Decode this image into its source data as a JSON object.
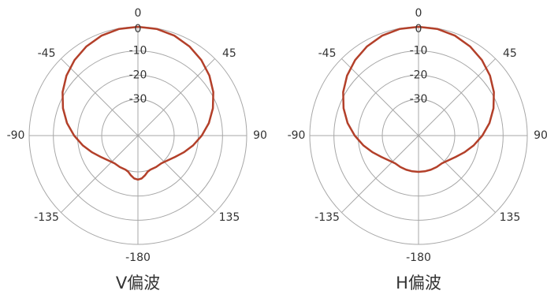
{
  "chart_data": [
    {
      "type": "polar-line",
      "title": "V偏波",
      "angle_unit": "deg",
      "angle_ticks": [
        0,
        45,
        90,
        135,
        -180,
        -135,
        -90,
        -45
      ],
      "angle_tick_labels": [
        "0",
        "45",
        "90",
        "135",
        "-180",
        "-135",
        "-90",
        "-45"
      ],
      "radial_ticks": [
        0,
        -10,
        -20,
        -30
      ],
      "radial_tick_labels": [
        "0",
        "-10",
        "-20",
        "-30"
      ],
      "rlim": [
        -30,
        0
      ],
      "grid": true,
      "color": "#b3402a",
      "series": [
        {
          "angles": [
            -180,
            -175,
            -170,
            -165,
            -160,
            -150,
            -140,
            -130,
            -120,
            -110,
            -100,
            -90,
            -80,
            -70,
            -60,
            -50,
            -40,
            -30,
            -20,
            -10,
            0,
            10,
            20,
            30,
            40,
            50,
            60,
            70,
            80,
            90,
            100,
            110,
            120,
            130,
            140,
            150,
            160,
            165,
            170,
            175,
            180
          ],
          "values": [
            -26.8,
            -27.2,
            -28.3,
            -29.5,
            -30,
            -30,
            -30,
            -29,
            -27.3,
            -24.8,
            -21.8,
            -18.6,
            -15.2,
            -12,
            -9,
            -6.4,
            -4.2,
            -2.4,
            -1,
            -0.2,
            0,
            -0.2,
            -1,
            -2.4,
            -4.2,
            -6.4,
            -9,
            -12,
            -15.2,
            -18.6,
            -21.8,
            -24.8,
            -27.3,
            -29,
            -30,
            -30,
            -30,
            -29.5,
            -28.3,
            -27.2,
            -26.8
          ]
        }
      ]
    },
    {
      "type": "polar-line",
      "title": "H偏波",
      "angle_unit": "deg",
      "angle_ticks": [
        0,
        45,
        90,
        135,
        -180,
        -135,
        -90,
        -45
      ],
      "angle_tick_labels": [
        "0",
        "45",
        "90",
        "135",
        "-180",
        "-135",
        "-90",
        "-45"
      ],
      "radial_ticks": [
        0,
        -10,
        -20,
        -30
      ],
      "radial_tick_labels": [
        "0",
        "-10",
        "-20",
        "-30"
      ],
      "rlim": [
        -30,
        0
      ],
      "grid": true,
      "color": "#b3402a",
      "series": [
        {
          "angles": [
            -180,
            -170,
            -160,
            -150,
            -140,
            -130,
            -120,
            -110,
            -100,
            -90,
            -80,
            -70,
            -60,
            -50,
            -40,
            -30,
            -20,
            -10,
            0,
            10,
            20,
            30,
            40,
            50,
            60,
            70,
            80,
            90,
            100,
            110,
            120,
            130,
            140,
            150,
            160,
            170,
            180
          ],
          "values": [
            -30,
            -30,
            -30,
            -30,
            -30,
            -29,
            -27.3,
            -24.8,
            -21.8,
            -18.6,
            -15.2,
            -12,
            -9,
            -6.4,
            -4.2,
            -2.4,
            -1,
            -0.2,
            0,
            -0.2,
            -1,
            -2.4,
            -4.2,
            -6.4,
            -9,
            -12,
            -15.2,
            -18.6,
            -21.8,
            -24.8,
            -27.3,
            -29,
            -30,
            -30,
            -30,
            -30,
            -30
          ]
        }
      ]
    }
  ]
}
